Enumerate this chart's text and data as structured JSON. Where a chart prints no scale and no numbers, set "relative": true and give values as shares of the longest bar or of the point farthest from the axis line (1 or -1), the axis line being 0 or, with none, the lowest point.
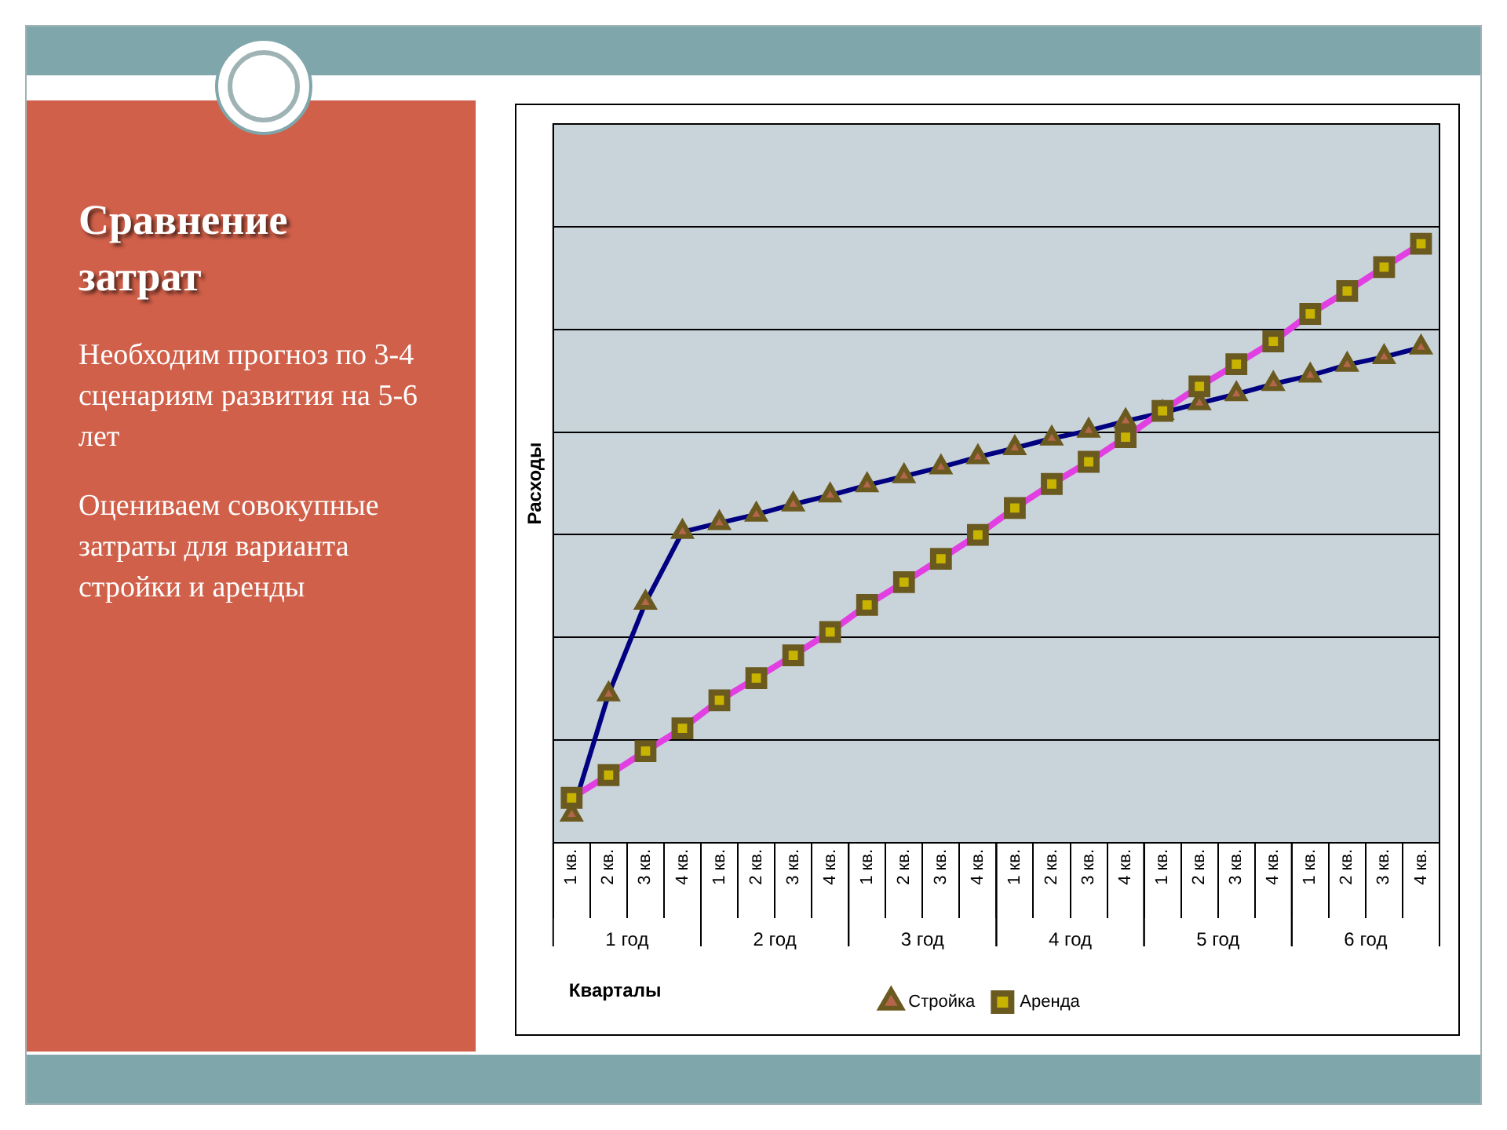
{
  "chart_data": {
    "type": "line",
    "title": "Сравнение затрат",
    "annotations": [
      "Необходим прогноз по 3-4 сценариям развития на 5-6 лет",
      "Оцениваем совокупные затраты для варианта стройки и аренды",
      "1 год",
      "2 год",
      "3 год",
      "4 год",
      "5 год",
      "6 год"
    ],
    "xlabel": "Кварталы",
    "ylabel": "Расходы",
    "relative": true,
    "grid": "y",
    "legend": "bottom",
    "categories": [
      "1 кв.",
      "2 кв.",
      "3 кв.",
      "4 кв.",
      "1 кв.",
      "2 кв.",
      "3 кв.",
      "4 кв.",
      "1 кв.",
      "2 кв.",
      "3 кв.",
      "4 кв.",
      "1 кв.",
      "2 кв.",
      "3 кв.",
      "4 кв.",
      "1 кв.",
      "2 кв.",
      "3 кв.",
      "4 кв.",
      "1 кв.",
      "2 кв.",
      "3 кв.",
      "4 кв."
    ],
    "series": [
      {
        "name": "Стройка",
        "color": "#000080",
        "marker": "triangle",
        "values": [
          0.047,
          0.248,
          0.401,
          0.519,
          0.534,
          0.548,
          0.565,
          0.58,
          0.597,
          0.612,
          0.627,
          0.644,
          0.659,
          0.675,
          0.688,
          0.704,
          0.718,
          0.734,
          0.749,
          0.766,
          0.78,
          0.798,
          0.811,
          0.827
        ]
      },
      {
        "name": "Аренда",
        "color": "#e23fe2",
        "marker": "square",
        "values": [
          0.075,
          0.113,
          0.153,
          0.191,
          0.238,
          0.275,
          0.313,
          0.352,
          0.397,
          0.435,
          0.474,
          0.514,
          0.559,
          0.599,
          0.636,
          0.677,
          0.721,
          0.762,
          0.799,
          0.837,
          0.883,
          0.921,
          0.961,
          1
        ]
      }
    ]
  }
}
